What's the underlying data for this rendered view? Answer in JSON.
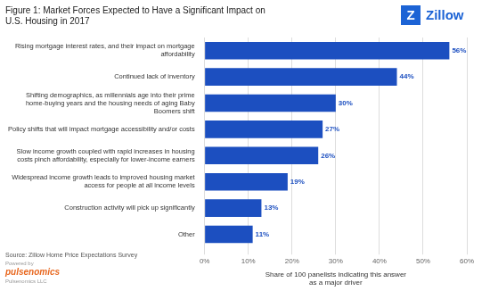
{
  "chart_data": {
    "type": "bar",
    "orientation": "horizontal",
    "title": [
      "Figure 1: Market Forces Expected to Have a Significant Impact on",
      "U.S. Housing in 2017"
    ],
    "categories": [
      "Rising mortgage interest rates, and their impact on mortgage\naffordability",
      "Continued lack of inventory",
      "Shifting demographics, as millennials age into their prime\nhome-buying years and the housing needs of aging Baby\nBoomers shift",
      "Policy shifts that will impact mortgage accessibility and/or costs",
      "Slow income growth coupled with rapid increases in housing\ncosts pinch affordability, especially for lower-income earners",
      "Widespread income growth leads to improved housing market\naccess for people at all income levels",
      "Construction activity will pick up significantly",
      "Other"
    ],
    "values": [
      56,
      44,
      30,
      27,
      26,
      19,
      13,
      11
    ],
    "value_labels": [
      "56%",
      "44%",
      "30%",
      "27%",
      "26%",
      "19%",
      "13%",
      "11%"
    ],
    "data_labels": true,
    "color": "#1c4fc0",
    "xlabel": [
      "Share of 100 panelists indicating this answer",
      "as a major driver"
    ],
    "xlim": [
      0,
      60
    ],
    "xticks": [
      {
        "value": 0,
        "label": "0%"
      },
      {
        "value": 10,
        "label": "10%"
      },
      {
        "value": 20,
        "label": "20%"
      },
      {
        "value": 30,
        "label": "30%"
      },
      {
        "value": 40,
        "label": "40%"
      },
      {
        "value": 50,
        "label": "50%"
      },
      {
        "value": 60,
        "label": "60%"
      }
    ],
    "grid": true,
    "annotations": [
      {
        "text": "Z",
        "color": "#1c63d5"
      },
      {
        "text": "Zillow",
        "color": "#1c63d5"
      },
      {
        "text": "Source: Zillow Home Price Expectations Survey",
        "color": "#555555"
      },
      {
        "text": "Powered by",
        "color": "#999999"
      },
      {
        "text": "pulsenomics",
        "color": "#e86820"
      },
      {
        "text": "Pulsenomics LLC",
        "color": "#999999"
      }
    ]
  }
}
